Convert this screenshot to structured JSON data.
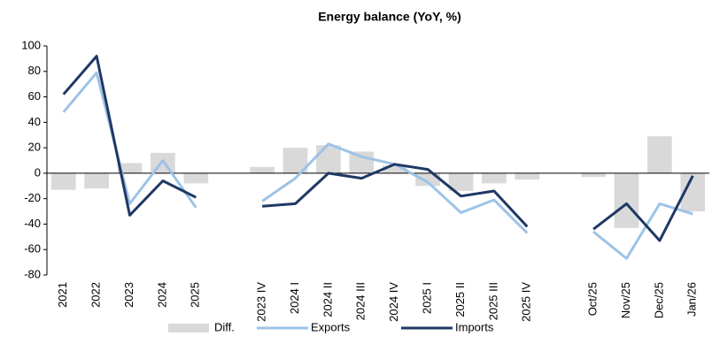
{
  "chart_data": {
    "type": "bar-line",
    "title": "Energy balance (YoY, %)",
    "categories": [
      "2021",
      "2022",
      "2023",
      "2024",
      "2025",
      null,
      "2023 IV",
      "2024 I",
      "2024 II",
      "2024 III",
      "2024 IV",
      "2025 I",
      "2025 II",
      "2025 III",
      "2025 IV",
      null,
      "Oct/25",
      "Nov/25",
      "Dec/25",
      "Jan/26"
    ],
    "series": [
      {
        "name": "Diff.",
        "type": "bar",
        "color": "#d9d9d9",
        "values": [
          -13,
          -12,
          8,
          16,
          -8,
          null,
          5,
          20,
          22,
          17,
          6,
          -10,
          -14,
          -8,
          -5,
          null,
          -3,
          -43,
          29,
          -30
        ]
      },
      {
        "name": "Exports",
        "type": "line",
        "color": "#9dc3e6",
        "values": [
          48,
          79,
          -24,
          10,
          -27,
          null,
          -22,
          -4,
          23,
          13,
          7,
          -7,
          -31,
          -21,
          -47,
          null,
          -46,
          -67,
          -24,
          -32
        ]
      },
      {
        "name": "Imports",
        "type": "line",
        "color": "#1f3864",
        "values": [
          62,
          92,
          -33,
          -6,
          -19,
          null,
          -26,
          -24,
          0,
          -4,
          7,
          3,
          -18,
          -14,
          -42,
          null,
          -44,
          -24,
          -53,
          -2
        ]
      }
    ],
    "ylim": [
      -80,
      100
    ],
    "yticks": [
      -80,
      -60,
      -40,
      -20,
      0,
      20,
      40,
      60,
      80,
      100
    ],
    "legend": "bottom"
  }
}
